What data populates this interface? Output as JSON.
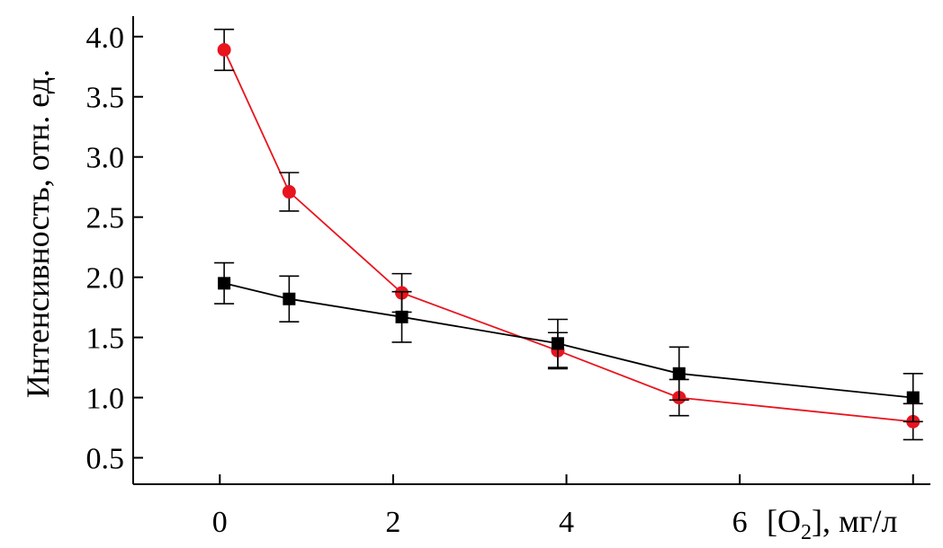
{
  "chart_data": {
    "type": "line",
    "title": "",
    "xlabel": "[O2], мг/л",
    "xlabel_main": "[O",
    "xlabel_sub": "2",
    "xlabel_tail": "], мг/л",
    "ylabel": "Интенсивность, отн. ед.",
    "xlim": [
      -1,
      8.2
    ],
    "ylim": [
      0.28,
      4.17
    ],
    "x_ticks": [
      0,
      2,
      4,
      6,
      8
    ],
    "x_tick_labels": [
      "0",
      "2",
      "4",
      "6"
    ],
    "y_ticks": [
      0.5,
      1.0,
      1.5,
      2.0,
      2.5,
      3.0,
      3.5,
      4.0
    ],
    "y_tick_labels": [
      "0.5",
      "1.0",
      "1.5",
      "2.0",
      "2.5",
      "3.0",
      "3.5",
      "4.0"
    ],
    "grid": false,
    "legend": "none",
    "series": [
      {
        "marker": "circle",
        "color": "#e8141e",
        "x": [
          0.05,
          0.8,
          2.1,
          3.9,
          5.3,
          8.0
        ],
        "y": [
          3.89,
          2.71,
          1.87,
          1.39,
          1.0,
          0.8
        ],
        "err": [
          0.17,
          0.16,
          0.16,
          0.15,
          0.15,
          0.15
        ]
      },
      {
        "marker": "square",
        "color": "#000000",
        "x": [
          0.05,
          0.8,
          2.1,
          3.9,
          5.3,
          8.0
        ],
        "y": [
          1.95,
          1.82,
          1.67,
          1.45,
          1.2,
          1.0
        ],
        "err": [
          0.17,
          0.19,
          0.21,
          0.2,
          0.22,
          0.2
        ]
      }
    ]
  }
}
